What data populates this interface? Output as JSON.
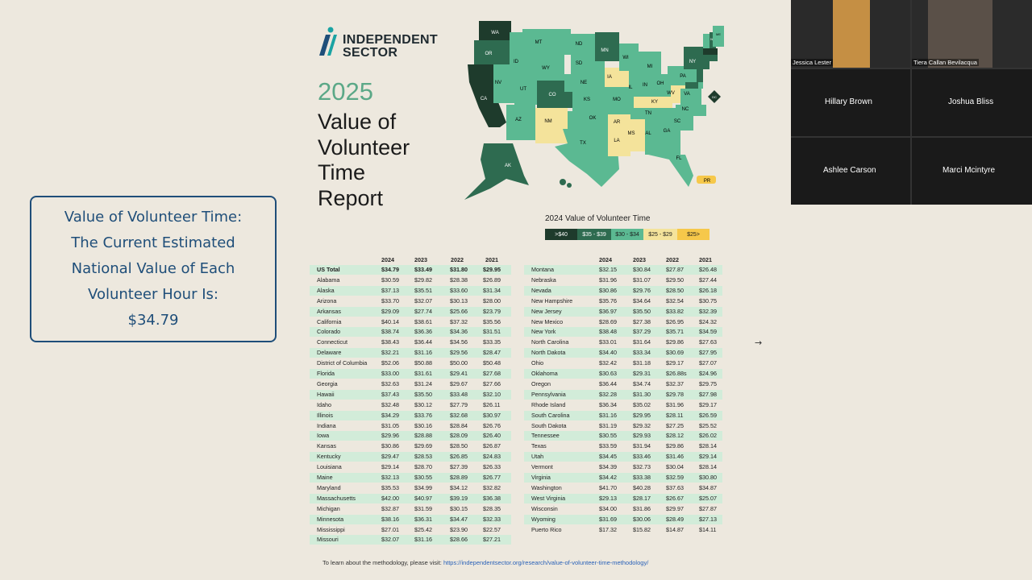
{
  "callout": {
    "lines": [
      "Value of Volunteer Time:",
      "The Current Estimated",
      "National Value of Each",
      "Volunteer Hour Is:",
      "$34.79"
    ]
  },
  "brand": {
    "line1": "INDEPENDENT",
    "line2": "SECTOR",
    "color": "#1f2a30",
    "accent": "#1aa3a3"
  },
  "report": {
    "year": "2025",
    "title_lines": [
      "Value of",
      "Volunteer",
      "Time",
      "Report"
    ]
  },
  "map": {
    "states": [
      "WA",
      "MT",
      "ND",
      "MN",
      "WI",
      "MI",
      "NY",
      "VT",
      "NH",
      "ME",
      "MA",
      "RI",
      "CT",
      "NJ",
      "DE",
      "MD",
      "DC",
      "OR",
      "ID",
      "SD",
      "WY",
      "IA",
      "IL",
      "IN",
      "OH",
      "PA",
      "NV",
      "UT",
      "NE",
      "CO",
      "KS",
      "MO",
      "KY",
      "WV",
      "VA",
      "CA",
      "AZ",
      "NM",
      "OK",
      "AR",
      "TN",
      "NC",
      "SC",
      "TX",
      "LA",
      "MS",
      "AL",
      "GA",
      "FL",
      "AK",
      "HI",
      "PR"
    ],
    "colors": {
      "gt40": "#1e3b2c",
      "r35_39": "#2e6b50",
      "r30_34": "#5bb992",
      "r25_29": "#f4e39b",
      "lt25": "#f6c84a"
    }
  },
  "legend": {
    "title": "2024 Value of Volunteer Time",
    "items": [
      {
        "label": ">$40",
        "color": "#1e3b2c",
        "text": "#ffffff"
      },
      {
        "label": "$35 - $39",
        "color": "#2e6b50",
        "text": "#ffffff"
      },
      {
        "label": "$30 - $34",
        "color": "#5bb992",
        "text": "#1b1b1b"
      },
      {
        "label": "$25 - $29",
        "color": "#f4e39b",
        "text": "#1b1b1b"
      },
      {
        "label": "$25>",
        "color": "#f6c84a",
        "text": "#1b1b1b"
      }
    ]
  },
  "table_headers": [
    "2024",
    "2023",
    "2022",
    "2021"
  ],
  "table_left": [
    [
      "US Total",
      "$34.79",
      "$33.49",
      "$31.80",
      "$29.95"
    ],
    [
      "Alabama",
      "$30.59",
      "$29.82",
      "$28.38",
      "$26.89"
    ],
    [
      "Alaska",
      "$37.13",
      "$35.51",
      "$33.60",
      "$31.34"
    ],
    [
      "Arizona",
      "$33.70",
      "$32.07",
      "$30.13",
      "$28.00"
    ],
    [
      "Arkansas",
      "$29.09",
      "$27.74",
      "$25.66",
      "$23.79"
    ],
    [
      "California",
      "$40.14",
      "$38.61",
      "$37.32",
      "$35.56"
    ],
    [
      "Colorado",
      "$38.74",
      "$36.36",
      "$34.36",
      "$31.51"
    ],
    [
      "Connecticut",
      "$38.43",
      "$36.44",
      "$34.56",
      "$33.35"
    ],
    [
      "Delaware",
      "$32.21",
      "$31.16",
      "$29.56",
      "$28.47"
    ],
    [
      "District of Columbia",
      "$52.06",
      "$50.88",
      "$50.00",
      "$50.48"
    ],
    [
      "Florida",
      "$33.00",
      "$31.61",
      "$29.41",
      "$27.68"
    ],
    [
      "Georgia",
      "$32.63",
      "$31.24",
      "$29.67",
      "$27.66"
    ],
    [
      "Hawaii",
      "$37.43",
      "$35.50",
      "$33.48",
      "$32.10"
    ],
    [
      "Idaho",
      "$32.48",
      "$30.12",
      "$27.79",
      "$26.11"
    ],
    [
      "Illinois",
      "$34.29",
      "$33.76",
      "$32.68",
      "$30.97"
    ],
    [
      "Indiana",
      "$31.05",
      "$30.16",
      "$28.84",
      "$26.76"
    ],
    [
      "Iowa",
      "$29.96",
      "$28.88",
      "$28.09",
      "$26.40"
    ],
    [
      "Kansas",
      "$30.86",
      "$29.69",
      "$28.50",
      "$26.87"
    ],
    [
      "Kentucky",
      "$29.47",
      "$28.53",
      "$26.85",
      "$24.83"
    ],
    [
      "Louisiana",
      "$29.14",
      "$28.70",
      "$27.39",
      "$26.33"
    ],
    [
      "Maine",
      "$32.13",
      "$30.55",
      "$28.89",
      "$26.77"
    ],
    [
      "Maryland",
      "$35.53",
      "$34.99",
      "$34.12",
      "$32.82"
    ],
    [
      "Massachusetts",
      "$42.00",
      "$40.97",
      "$39.19",
      "$36.38"
    ],
    [
      "Michigan",
      "$32.87",
      "$31.59",
      "$30.15",
      "$28.35"
    ],
    [
      "Minnesota",
      "$38.16",
      "$36.31",
      "$34.47",
      "$32.33"
    ],
    [
      "Mississippi",
      "$27.01",
      "$25.42",
      "$23.90",
      "$22.57"
    ],
    [
      "Missouri",
      "$32.07",
      "$31.16",
      "$28.66",
      "$27.21"
    ]
  ],
  "table_right": [
    [
      "Montana",
      "$32.15",
      "$30.84",
      "$27.87",
      "$26.48"
    ],
    [
      "Nebraska",
      "$31.96",
      "$31.07",
      "$29.50",
      "$27.44"
    ],
    [
      "Nevada",
      "$30.86",
      "$29.76",
      "$28.50",
      "$26.18"
    ],
    [
      "New Hampshire",
      "$35.76",
      "$34.64",
      "$32.54",
      "$30.75"
    ],
    [
      "New Jersey",
      "$36.97",
      "$35.50",
      "$33.82",
      "$32.39"
    ],
    [
      "New Mexico",
      "$28.69",
      "$27.38",
      "$26.95",
      "$24.32"
    ],
    [
      "New York",
      "$38.48",
      "$37.29",
      "$35.71",
      "$34.59"
    ],
    [
      "North Carolina",
      "$33.01",
      "$31.64",
      "$29.86",
      "$27.63"
    ],
    [
      "North Dakota",
      "$34.40",
      "$33.34",
      "$30.69",
      "$27.95"
    ],
    [
      "Ohio",
      "$32.42",
      "$31.18",
      "$29.17",
      "$27.07"
    ],
    [
      "Oklahoma",
      "$30.63",
      "$29.31",
      "$26.88s",
      "$24.96"
    ],
    [
      "Oregon",
      "$36.44",
      "$34.74",
      "$32.37",
      "$29.75"
    ],
    [
      "Pennsylvania",
      "$32.28",
      "$31.30",
      "$29.78",
      "$27.98"
    ],
    [
      "Rhode Island",
      "$36.34",
      "$35.02",
      "$31.96",
      "$29.17"
    ],
    [
      "South Carolina",
      "$31.16",
      "$29.95",
      "$28.11",
      "$26.59"
    ],
    [
      "South Dakota",
      "$31.19",
      "$29.32",
      "$27.25",
      "$25.52"
    ],
    [
      "Tennessee",
      "$30.55",
      "$29.93",
      "$28.12",
      "$26.02"
    ],
    [
      "Texas",
      "$33.59",
      "$31.94",
      "$29.86",
      "$28.14"
    ],
    [
      "Utah",
      "$34.45",
      "$33.46",
      "$31.46",
      "$29.14"
    ],
    [
      "Vermont",
      "$34.39",
      "$32.73",
      "$30.04",
      "$28.14"
    ],
    [
      "Virginia",
      "$34.42",
      "$33.38",
      "$32.59",
      "$30.80"
    ],
    [
      "Washington",
      "$41.70",
      "$40.28",
      "$37.63",
      "$34.87"
    ],
    [
      "West Virginia",
      "$29.13",
      "$28.17",
      "$26.67",
      "$25.07"
    ],
    [
      "Wisconsin",
      "$34.00",
      "$31.86",
      "$29.97",
      "$27.87"
    ],
    [
      "Wyoming",
      "$31.69",
      "$30.06",
      "$28.49",
      "$27.13"
    ],
    [
      "Puerto Rico",
      "$17.32",
      "$15.82",
      "$14.87",
      "$14.11"
    ]
  ],
  "footer": {
    "text": "To learn about the methodology, please visit:",
    "link": "https://independentsector.org/research/value-of-volunteer-time-methodology/"
  },
  "cursor_icon": "arrow-right-icon",
  "participants": {
    "cam1": "Jessica Lester",
    "cam2": "Tiera Callan Bevilacqua",
    "p3": "Hillary Brown",
    "p4": "Joshua Bliss",
    "p5": "Ashlee Carson",
    "p6": "Marci Mcintyre"
  }
}
